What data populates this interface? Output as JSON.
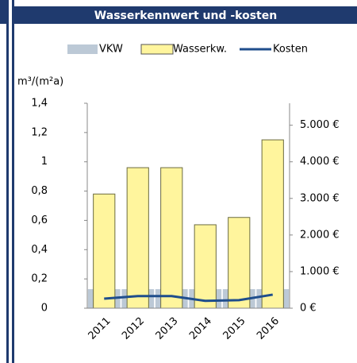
{
  "chart_data": {
    "type": "bar",
    "title": "Wasserkennwert und -kosten",
    "ylabel": "m³/(m²a)",
    "categories": [
      "2011",
      "2012",
      "2013",
      "2014",
      "2015",
      "2016"
    ],
    "series": [
      {
        "name": "VKW",
        "color": "#bcc9d6",
        "values": [
          0.13,
          0.13,
          0.13,
          0.13,
          0.13,
          0.13
        ]
      },
      {
        "name": "Wasserkw.",
        "color": "#fff59d",
        "values": [
          0.78,
          0.96,
          0.96,
          0.57,
          0.62,
          1.15
        ]
      },
      {
        "name": "Kosten",
        "color": "#1f4e8c",
        "type": "line",
        "axis": "y2",
        "values": [
          260,
          330,
          330,
          200,
          220,
          370
        ]
      }
    ],
    "ylim": [
      0,
      1.4
    ],
    "yticks": [
      0,
      {
        "value": 0.2,
        "label": "0,2"
      },
      {
        "value": 0.4,
        "label": "0,4"
      },
      {
        "value": 0.6,
        "label": "0,6"
      },
      {
        "value": 0.8,
        "label": "0,8"
      },
      1,
      {
        "value": 1.2,
        "label": "1,2"
      },
      {
        "value": 1.4,
        "label": "1,4"
      }
    ],
    "y2lim": [
      0,
      5600
    ],
    "y2ticks": [
      {
        "value": 0,
        "label": "0 €"
      },
      {
        "value": 1000,
        "label": "1.000 €"
      },
      {
        "value": 2000,
        "label": "2.000 €"
      },
      {
        "value": 3000,
        "label": "3.000 €"
      },
      {
        "value": 4000,
        "label": "4.000 €"
      },
      {
        "value": 5000,
        "label": "5.000 €"
      }
    ],
    "legend": "top",
    "grid": false
  }
}
